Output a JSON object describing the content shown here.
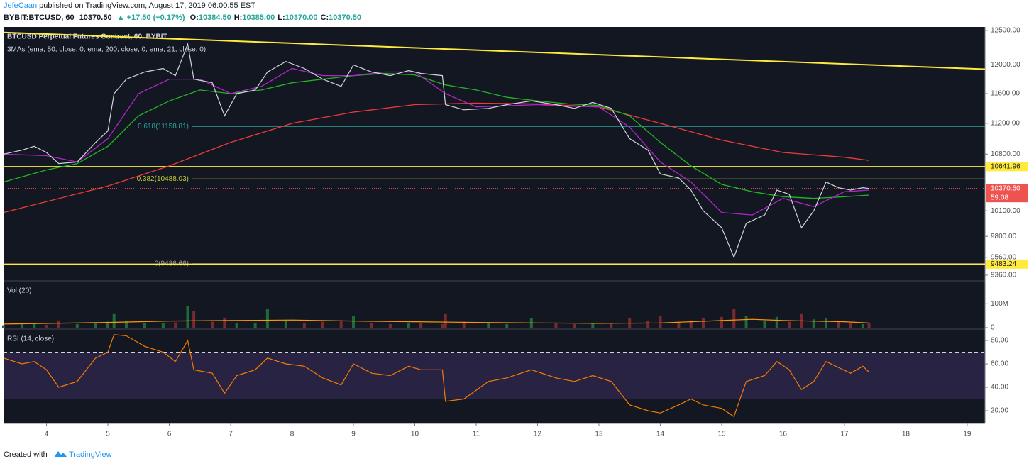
{
  "header": {
    "author": "JefeCaan",
    "published": "published on TradingView.com, August 17, 2019 06:00:55 EST",
    "symbol": "BYBIT:BTCUSD, 60",
    "last": "10370.50",
    "change": "▲ +17.50 (+0.17%)",
    "ohlc": [
      {
        "key": "O:",
        "value": "10384.50"
      },
      {
        "key": "H:",
        "value": "10385.00"
      },
      {
        "key": "L:",
        "value": "10370.00"
      },
      {
        "key": "C:",
        "value": "10370.50"
      }
    ]
  },
  "footer": {
    "created": "Created with",
    "brand": "TradingView"
  },
  "chart_data": [
    {
      "type": "line",
      "title": "BTCUSD Perpetual Futures Contract, 60, BYBIT",
      "subtitle": "3MAs (ema, 50, close, 0, ema, 200, close, 0, ema, 21, close, 0)",
      "log_scale": true,
      "xlim": [
        3.3,
        19.29
      ],
      "xticks": [
        4,
        5,
        6,
        7,
        8,
        9,
        10,
        11,
        12,
        13,
        14,
        15,
        16,
        17,
        18,
        19
      ],
      "ylim": [
        9305,
        12530
      ],
      "yticks": [
        {
          "value": 12500,
          "label": "12500.00"
        },
        {
          "value": 12000,
          "label": "12000.00"
        },
        {
          "value": 11600,
          "label": "11600.00"
        },
        {
          "value": 11200,
          "label": "11200.00"
        },
        {
          "value": 10800,
          "label": "10800.00"
        },
        {
          "value": 10100,
          "label": "10100.00"
        },
        {
          "value": 9800,
          "label": "9800.00"
        },
        {
          "value": 9560,
          "label": "9560.00"
        },
        {
          "value": 9360,
          "label": "9360.00"
        }
      ],
      "x": [
        3.3,
        3.6,
        3.8,
        4.0,
        4.2,
        4.5,
        4.8,
        5.0,
        5.1,
        5.3,
        5.6,
        5.9,
        6.1,
        6.3,
        6.4,
        6.7,
        6.9,
        7.1,
        7.4,
        7.6,
        7.9,
        8.2,
        8.5,
        8.8,
        9.0,
        9.3,
        9.6,
        9.9,
        10.1,
        10.45,
        10.5,
        10.8,
        11.2,
        11.5,
        11.9,
        12.3,
        12.6,
        12.9,
        13.2,
        13.5,
        13.8,
        14.0,
        14.3,
        14.5,
        14.7,
        15.0,
        15.2,
        15.4,
        15.7,
        15.9,
        16.1,
        16.3,
        16.5,
        16.7,
        16.9,
        17.1,
        17.3,
        17.4
      ],
      "values": [
        10800,
        10850,
        10900,
        10820,
        10680,
        10700,
        10950,
        11100,
        11600,
        11800,
        11900,
        11950,
        11850,
        12300,
        11800,
        11750,
        11300,
        11600,
        11650,
        11900,
        12050,
        11950,
        11800,
        11700,
        12000,
        11900,
        11850,
        11920,
        11880,
        11850,
        11450,
        11380,
        11400,
        11450,
        11500,
        11450,
        11400,
        11480,
        11400,
        11000,
        10850,
        10550,
        10500,
        10350,
        10100,
        9900,
        9560,
        9950,
        10050,
        10350,
        10300,
        9900,
        10100,
        10450,
        10380,
        10350,
        10380,
        10370
      ],
      "color": "#d1d4dc",
      "series": [
        {
          "color": "#ef3a3a",
          "x": [
            3.3,
            5,
            6,
            7,
            8,
            9,
            10,
            11,
            12,
            13,
            14,
            15,
            16,
            17,
            17.4
          ],
          "values": [
            10080,
            10400,
            10650,
            10950,
            11200,
            11350,
            11450,
            11470,
            11460,
            11420,
            11200,
            10980,
            10820,
            10760,
            10720
          ]
        },
        {
          "color": "#21b521",
          "x": [
            3.3,
            4,
            4.5,
            5,
            5.5,
            6,
            6.5,
            7,
            7.5,
            8,
            8.5,
            9,
            9.5,
            10,
            10.5,
            11,
            11.5,
            12,
            12.5,
            13,
            13.5,
            14,
            14.5,
            15,
            15.5,
            16,
            16.5,
            17,
            17.4
          ],
          "values": [
            10450,
            10600,
            10680,
            10900,
            11300,
            11500,
            11650,
            11600,
            11650,
            11750,
            11800,
            11850,
            11880,
            11860,
            11720,
            11650,
            11550,
            11500,
            11460,
            11440,
            11300,
            10950,
            10650,
            10420,
            10330,
            10270,
            10250,
            10270,
            10290
          ]
        },
        {
          "color": "#b025c8",
          "x": [
            3.3,
            4,
            4.5,
            5,
            5.5,
            6,
            6.5,
            7,
            7.5,
            8,
            8.5,
            9,
            9.5,
            10,
            10.5,
            11,
            12,
            12.5,
            13,
            13.5,
            14,
            14.5,
            15,
            15.5,
            16,
            16.5,
            17,
            17.4
          ],
          "values": [
            10800,
            10780,
            10700,
            11000,
            11600,
            11800,
            11800,
            11600,
            11700,
            11950,
            11850,
            11850,
            11900,
            11900,
            11600,
            11420,
            11450,
            11430,
            11420,
            11150,
            10700,
            10450,
            10080,
            10050,
            10250,
            10150,
            10330,
            10350
          ]
        }
      ],
      "trendline": {
        "x": [
          3.3,
          19.29
        ],
        "values": [
          12470,
          11940
        ],
        "color": "#ffeb3b"
      },
      "levels": [
        {
          "label": "0.618(11158.81)",
          "value": 11158.81,
          "color": "#26a69a"
        },
        {
          "label": "0.382(10488.03)",
          "value": 10488.03,
          "color": "#c0ca33"
        },
        {
          "label": "0(9486.66)",
          "value": 9486.66,
          "color": "#9e9e9e"
        }
      ],
      "price_lines": [
        {
          "value": 10641.96,
          "color": "#ffeb3b"
        },
        {
          "value": 10370.5,
          "label": "10370.50",
          "color": "#ef5350",
          "countdown": "59:08"
        },
        {
          "value": 9483.24,
          "color": "#ffeb3b"
        }
      ]
    },
    {
      "type": "bar",
      "title": "Vol (20)",
      "xlim": [
        3.3,
        19.29
      ],
      "ylim": [
        0,
        190000000
      ],
      "yticks": [
        0,
        {
          "value": 100000000,
          "label": "100M"
        }
      ],
      "x": [
        3.3,
        3.6,
        3.8,
        4.0,
        4.2,
        4.5,
        4.8,
        5.0,
        5.1,
        5.3,
        5.6,
        5.9,
        6.1,
        6.3,
        6.4,
        6.7,
        6.9,
        7.1,
        7.4,
        7.6,
        7.9,
        8.2,
        8.5,
        8.8,
        9.0,
        9.3,
        9.6,
        9.9,
        10.1,
        10.45,
        10.5,
        10.8,
        11.2,
        11.5,
        11.9,
        12.3,
        12.6,
        12.9,
        13.2,
        13.5,
        13.8,
        14.0,
        14.3,
        14.5,
        14.7,
        15.0,
        15.2,
        15.4,
        15.7,
        15.9,
        16.1,
        16.3,
        16.5,
        16.7,
        16.9,
        17.1,
        17.3,
        17.4
      ],
      "values": [
        10000000.0,
        15000000.0,
        20000000.0,
        12000000.0,
        30000000.0,
        15000000.0,
        20000000.0,
        25000000.0,
        60000000.0,
        30000000.0,
        20000000.0,
        18000000.0,
        22000000.0,
        90000000.0,
        70000000.0,
        25000000.0,
        40000000.0,
        20000000.0,
        18000000.0,
        80000000.0,
        30000000.0,
        20000000.0,
        25000000.0,
        30000000.0,
        50000000.0,
        20000000.0,
        15000000.0,
        18000000.0,
        20000000.0,
        15000000.0,
        60000000.0,
        25000000.0,
        20000000.0,
        15000000.0,
        40000000.0,
        20000000.0,
        15000000.0,
        18000000.0,
        20000000.0,
        40000000.0,
        30000000.0,
        50000000.0,
        25000000.0,
        30000000.0,
        40000000.0,
        45000000.0,
        80000000.0,
        50000000.0,
        30000000.0,
        45000000.0,
        25000000.0,
        60000000.0,
        35000000.0,
        40000000.0,
        25000000.0,
        20000000.0,
        15000000.0,
        18000000.0
      ],
      "up_color": "#1e6b3a",
      "down_color": "#7a2a2e",
      "ma": {
        "color": "#ff9800",
        "x": [
          3.3,
          5,
          6,
          7,
          8,
          9,
          10,
          11,
          12,
          13,
          14,
          15,
          15.5,
          16,
          17,
          17.4
        ],
        "values": [
          15000000.0,
          22000000.0,
          28000000.0,
          30000000.0,
          32000000.0,
          28000000.0,
          25000000.0,
          22000000.0,
          20000000.0,
          18000000.0,
          20000000.0,
          30000000.0,
          35000000.0,
          30000000.0,
          25000000.0,
          20000000.0
        ]
      }
    },
    {
      "type": "line",
      "title": "RSI (14, close)",
      "xlim": [
        3.3,
        19.29
      ],
      "ylim": [
        9.7,
        88.5
      ],
      "yticks": [
        {
          "value": 80,
          "label": "80.00"
        },
        {
          "value": 60,
          "label": "60.00"
        },
        {
          "value": 40,
          "label": "40.00"
        },
        {
          "value": 20,
          "label": "20.00"
        }
      ],
      "x": [
        3.3,
        3.6,
        3.8,
        4.0,
        4.2,
        4.5,
        4.8,
        5.0,
        5.1,
        5.3,
        5.6,
        5.9,
        6.1,
        6.3,
        6.4,
        6.7,
        6.9,
        7.1,
        7.4,
        7.6,
        7.9,
        8.2,
        8.5,
        8.8,
        9.0,
        9.3,
        9.6,
        9.9,
        10.1,
        10.45,
        10.5,
        10.8,
        11.2,
        11.5,
        11.9,
        12.3,
        12.6,
        12.9,
        13.2,
        13.5,
        13.8,
        14.0,
        14.3,
        14.5,
        14.7,
        15.0,
        15.2,
        15.4,
        15.7,
        15.9,
        16.1,
        16.3,
        16.5,
        16.7,
        16.9,
        17.1,
        17.3,
        17.4
      ],
      "values": [
        65,
        60,
        62,
        55,
        40,
        45,
        65,
        70,
        85,
        84,
        75,
        70,
        62,
        80,
        55,
        52,
        35,
        50,
        55,
        65,
        60,
        58,
        48,
        42,
        60,
        52,
        50,
        58,
        55,
        55,
        28,
        30,
        45,
        48,
        55,
        48,
        45,
        50,
        45,
        25,
        20,
        18,
        25,
        30,
        25,
        22,
        15,
        45,
        50,
        62,
        55,
        38,
        45,
        62,
        57,
        52,
        58,
        53
      ],
      "color": "#f57c00",
      "bands": [
        70,
        30
      ],
      "band_color": "#7e57c2"
    }
  ]
}
